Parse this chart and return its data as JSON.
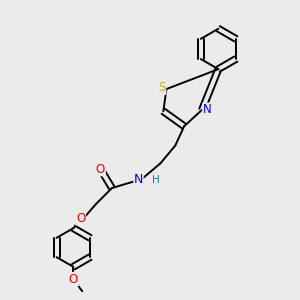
{
  "background_color": "#ebebeb",
  "bond_color": "#000000",
  "bond_lw": 1.4,
  "atom_colors": {
    "N": "#0000ee",
    "O": "#ee0000",
    "S": "#bbbb00",
    "H": "#008888"
  },
  "font_size": 7.5,
  "fig_size": [
    3.0,
    3.0
  ],
  "dpi": 100,
  "xlim": [
    0,
    10
  ],
  "ylim": [
    0,
    10
  ]
}
